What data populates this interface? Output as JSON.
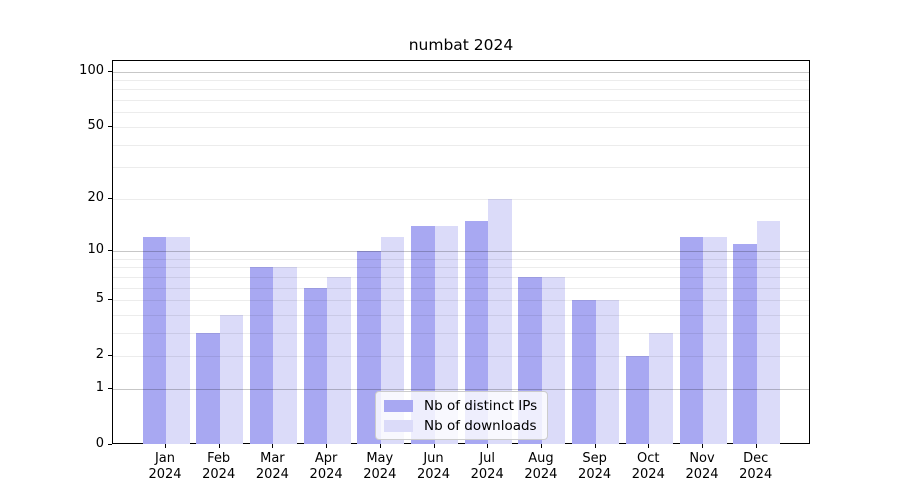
{
  "title": "numbat 2024",
  "chart_data": {
    "type": "bar",
    "title": "numbat 2024",
    "categories": [
      "Jan\n2024",
      "Feb\n2024",
      "Mar\n2024",
      "Apr\n2024",
      "May\n2024",
      "Jun\n2024",
      "Jul\n2024",
      "Aug\n2024",
      "Sep\n2024",
      "Oct\n2024",
      "Nov\n2024",
      "Dec\n2024"
    ],
    "series": [
      {
        "name": "Nb of distinct IPs",
        "color": "#a8a8f2",
        "values": [
          12,
          3,
          8,
          6,
          10,
          14,
          15,
          7,
          5,
          2,
          12,
          11
        ]
      },
      {
        "name": "Nb of downloads",
        "color": "#dbdbf9",
        "values": [
          12,
          4,
          8,
          7,
          12,
          14,
          20,
          7,
          5,
          3,
          12,
          15
        ]
      }
    ],
    "xlabel": "",
    "ylabel": "",
    "yscale": "log1p",
    "yticks": [
      0,
      1,
      2,
      5,
      10,
      20,
      50,
      100
    ],
    "minor_gridlines": [
      2,
      3,
      4,
      5,
      6,
      7,
      8,
      9,
      20,
      30,
      40,
      50,
      60,
      70,
      80,
      90
    ],
    "major_gridlines": [
      1,
      10,
      100
    ],
    "ylim": [
      0,
      113
    ],
    "grid": true,
    "legend_position": "lower center"
  }
}
